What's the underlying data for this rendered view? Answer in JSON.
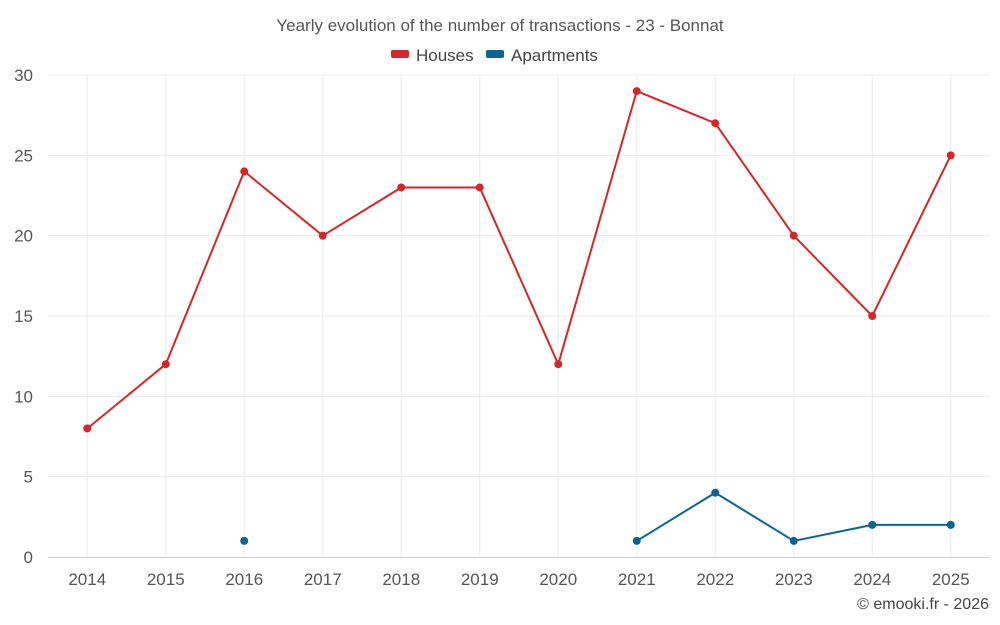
{
  "chart_data": {
    "type": "line",
    "title": "Yearly evolution of the number of transactions - 23 - Bonnat",
    "xlabel": "",
    "ylabel": "",
    "categories": [
      "2014",
      "2015",
      "2016",
      "2017",
      "2018",
      "2019",
      "2020",
      "2021",
      "2022",
      "2023",
      "2024",
      "2025"
    ],
    "ylim": [
      0,
      30
    ],
    "yticks": [
      0,
      5,
      10,
      15,
      20,
      25,
      30
    ],
    "grid": true,
    "legend_position": "top-center",
    "series": [
      {
        "name": "Houses",
        "color": "#d62728",
        "values": [
          8,
          12,
          24,
          20,
          23,
          23,
          12,
          29,
          27,
          20,
          15,
          25
        ]
      },
      {
        "name": "Apartments",
        "color": "#0b6396",
        "values": [
          null,
          null,
          1,
          null,
          null,
          null,
          null,
          1,
          4,
          1,
          2,
          2
        ]
      }
    ],
    "credit": "© emooki.fr - 2026"
  }
}
